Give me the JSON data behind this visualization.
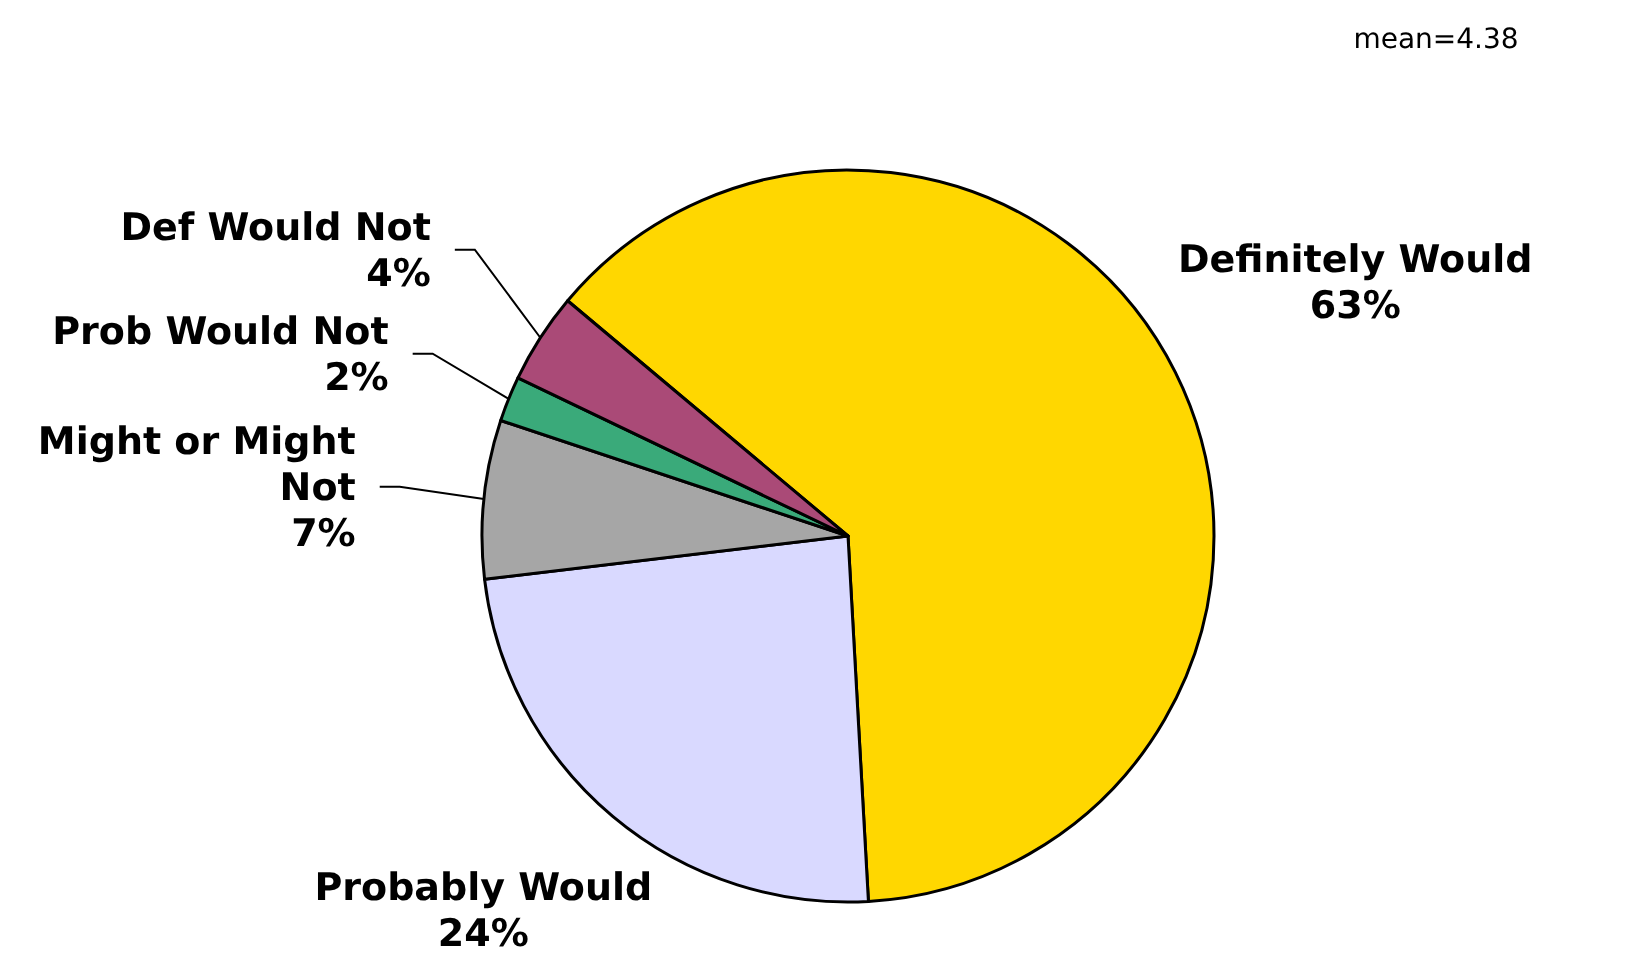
{
  "chart_data": {
    "type": "pie",
    "categories": [
      "Definitely Would",
      "Probably Would",
      "Might or Might Not",
      "Prob Would Not",
      "Def Would Not"
    ],
    "values": [
      63,
      24,
      7,
      2,
      4
    ],
    "value_labels": [
      "63%",
      "24%",
      "7%",
      "2%",
      "4%"
    ],
    "colors": [
      "#ffd700",
      "#d9d9ff",
      "#a6a6a6",
      "#3aaa7a",
      "#aa4a77"
    ],
    "annotations": [
      "mean=4.38"
    ]
  }
}
